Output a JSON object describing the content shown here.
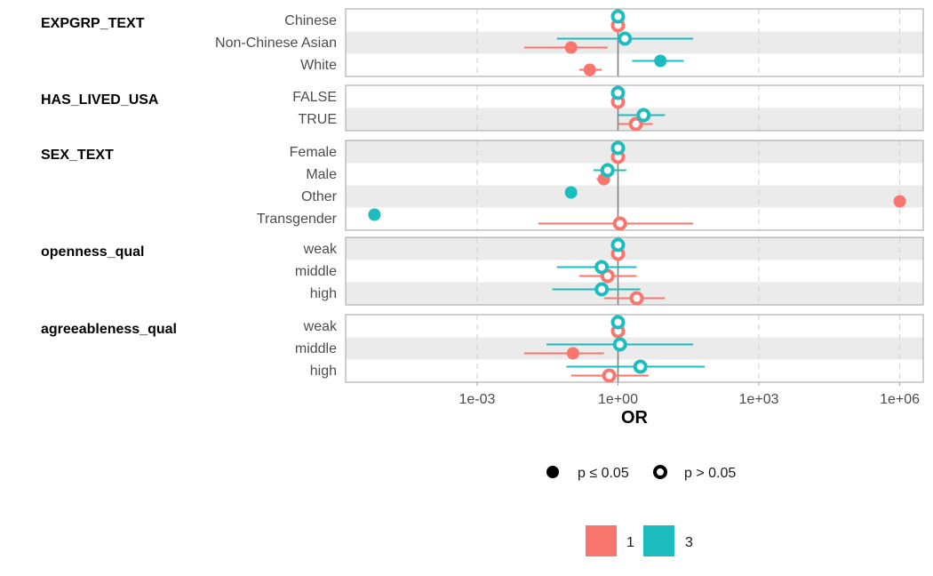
{
  "chart_data": {
    "type": "scatter",
    "subtype": "forest-plot",
    "xlabel": "OR",
    "x_scale": "log10",
    "x_ticks": [
      {
        "value": 0.001,
        "label": "1e-03"
      },
      {
        "value": 1,
        "label": "1e+00"
      },
      {
        "value": 1000,
        "label": "1e+03"
      },
      {
        "value": 1000000,
        "label": "1e+06"
      }
    ],
    "xlim_log10": [
      -5.8,
      6.5
    ],
    "reference_value": 1,
    "series": [
      {
        "name": "1",
        "color": "#F8766D"
      },
      {
        "name": "3",
        "color": "#1CBCBF"
      }
    ],
    "significance_legend": {
      "filled_label": "p ≤ 0.05",
      "open_label": "p > 0.05"
    },
    "groups": [
      {
        "title": "EXPGRP_TEXT",
        "levels": [
          "Chinese",
          "Non-Chinese Asian",
          "White"
        ],
        "shaded": [
          false,
          true,
          false
        ],
        "points": [
          {
            "level": "Chinese",
            "series": "1",
            "or": 1.0,
            "lo": 1.0,
            "hi": 1.0,
            "sig": false
          },
          {
            "level": "Chinese",
            "series": "3",
            "or": 1.0,
            "lo": 1.0,
            "hi": 1.0,
            "sig": false
          },
          {
            "level": "Non-Chinese Asian",
            "series": "1",
            "or": 0.1,
            "lo": 0.01,
            "hi": 0.6,
            "sig": true
          },
          {
            "level": "Non-Chinese Asian",
            "series": "3",
            "or": 1.4,
            "lo": 0.05,
            "hi": 40,
            "sig": false
          },
          {
            "level": "White",
            "series": "1",
            "or": 0.25,
            "lo": 0.15,
            "hi": 0.45,
            "sig": true
          },
          {
            "level": "White",
            "series": "3",
            "or": 8.0,
            "lo": 2.0,
            "hi": 25,
            "sig": true
          }
        ]
      },
      {
        "title": "HAS_LIVED_USA",
        "levels": [
          "FALSE",
          "TRUE"
        ],
        "shaded": [
          false,
          true
        ],
        "points": [
          {
            "level": "FALSE",
            "series": "1",
            "or": 1.0,
            "lo": 1.0,
            "hi": 1.0,
            "sig": false
          },
          {
            "level": "FALSE",
            "series": "3",
            "or": 1.0,
            "lo": 1.0,
            "hi": 1.0,
            "sig": false
          },
          {
            "level": "TRUE",
            "series": "1",
            "or": 2.4,
            "lo": 1.0,
            "hi": 5.5,
            "sig": false
          },
          {
            "level": "TRUE",
            "series": "3",
            "or": 3.5,
            "lo": 1.0,
            "hi": 10,
            "sig": false
          }
        ]
      },
      {
        "title": "SEX_TEXT",
        "levels": [
          "Female",
          "Male",
          "Other",
          "Transgender"
        ],
        "shaded": [
          true,
          false,
          true,
          false
        ],
        "points": [
          {
            "level": "Female",
            "series": "1",
            "or": 1.0,
            "lo": 1.0,
            "hi": 1.0,
            "sig": false
          },
          {
            "level": "Female",
            "series": "3",
            "or": 1.0,
            "lo": 1.0,
            "hi": 1.0,
            "sig": false
          },
          {
            "level": "Male",
            "series": "1",
            "or": 0.5,
            "lo": 0.35,
            "hi": 0.65,
            "sig": true
          },
          {
            "level": "Male",
            "series": "3",
            "or": 0.6,
            "lo": 0.3,
            "hi": 1.5,
            "sig": false
          },
          {
            "level": "Other",
            "series": "1",
            "or": 1000000,
            "lo": 1000000,
            "hi": 1000000,
            "sig": true
          },
          {
            "level": "Other",
            "series": "3",
            "or": 0.1,
            "lo": 0.1,
            "hi": 0.1,
            "sig": true
          },
          {
            "level": "Transgender",
            "series": "1",
            "or": 1.1,
            "lo": 0.02,
            "hi": 40,
            "sig": false
          },
          {
            "level": "Transgender",
            "series": "3",
            "or": 6.5e-06,
            "lo": 6.5e-06,
            "hi": 6.5e-06,
            "sig": true
          }
        ]
      },
      {
        "title": "openness_qual",
        "levels": [
          "weak",
          "middle",
          "high"
        ],
        "shaded": [
          true,
          false,
          true
        ],
        "points": [
          {
            "level": "weak",
            "series": "1",
            "or": 1.0,
            "lo": 1.0,
            "hi": 1.0,
            "sig": false
          },
          {
            "level": "weak",
            "series": "3",
            "or": 1.0,
            "lo": 1.0,
            "hi": 1.0,
            "sig": false
          },
          {
            "level": "middle",
            "series": "1",
            "or": 0.6,
            "lo": 0.15,
            "hi": 2.5,
            "sig": false
          },
          {
            "level": "middle",
            "series": "3",
            "or": 0.45,
            "lo": 0.05,
            "hi": 2.5,
            "sig": false
          },
          {
            "level": "high",
            "series": "1",
            "or": 2.5,
            "lo": 0.5,
            "hi": 10,
            "sig": false
          },
          {
            "level": "high",
            "series": "3",
            "or": 0.45,
            "lo": 0.04,
            "hi": 3.0,
            "sig": false
          }
        ]
      },
      {
        "title": "agreeableness_qual",
        "levels": [
          "weak",
          "middle",
          "high"
        ],
        "shaded": [
          false,
          true,
          false
        ],
        "points": [
          {
            "level": "weak",
            "series": "1",
            "or": 1.0,
            "lo": 1.0,
            "hi": 1.0,
            "sig": false
          },
          {
            "level": "weak",
            "series": "3",
            "or": 1.0,
            "lo": 1.0,
            "hi": 1.0,
            "sig": false
          },
          {
            "level": "middle",
            "series": "1",
            "or": 0.11,
            "lo": 0.01,
            "hi": 0.5,
            "sig": true
          },
          {
            "level": "middle",
            "series": "3",
            "or": 1.1,
            "lo": 0.03,
            "hi": 40,
            "sig": false
          },
          {
            "level": "high",
            "series": "1",
            "or": 0.65,
            "lo": 0.1,
            "hi": 4.5,
            "sig": false
          },
          {
            "level": "high",
            "series": "3",
            "or": 3.0,
            "lo": 0.08,
            "hi": 70,
            "sig": false
          }
        ]
      }
    ]
  }
}
